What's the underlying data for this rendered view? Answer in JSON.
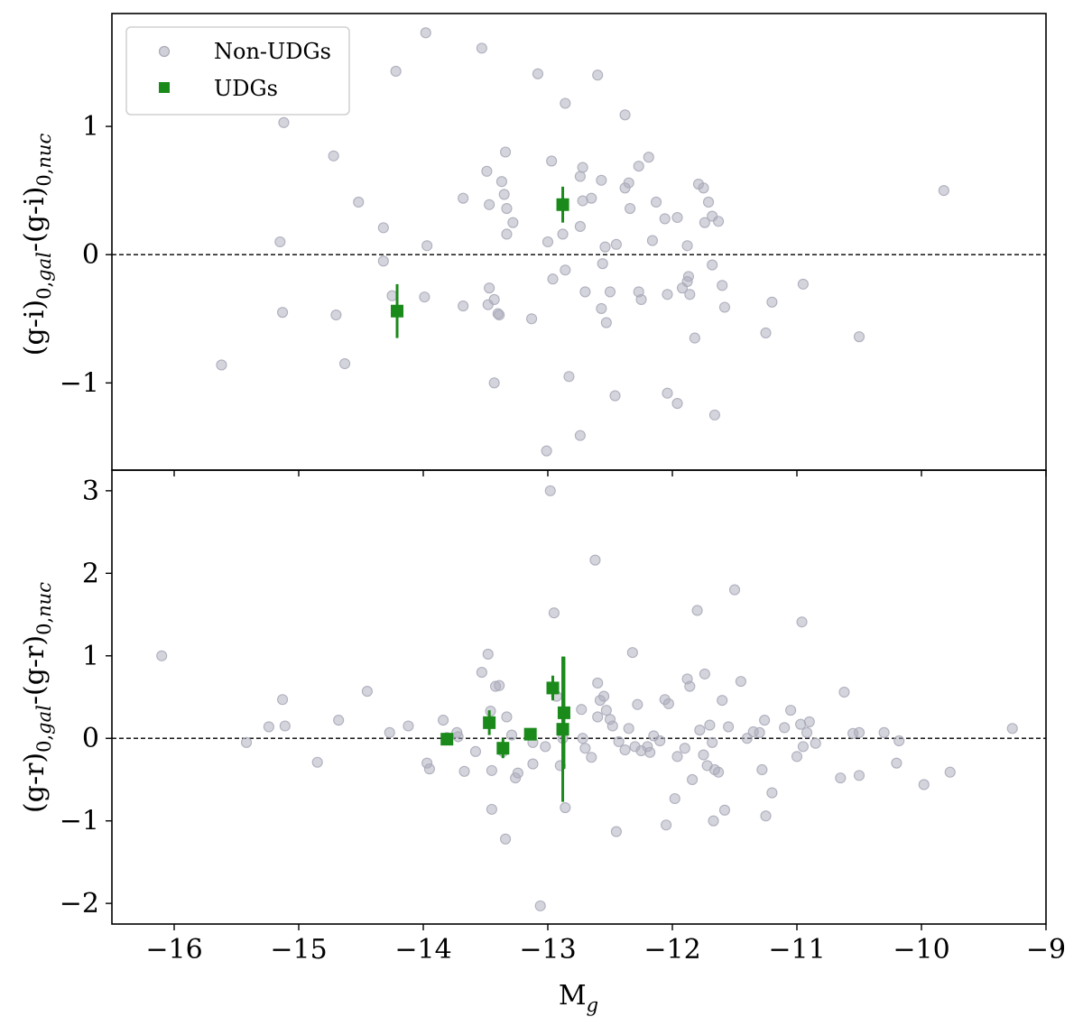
{
  "colors": {
    "non_udg_marker": "#a9aab9",
    "udg_marker": "#1a8a1a",
    "axis": "#000000",
    "zero_line": "#000000"
  },
  "legend": {
    "location": "upper-left",
    "entries": [
      {
        "label": "Non-UDGs",
        "marker": "circle",
        "color": "#a9aab9"
      },
      {
        "label": "UDGs",
        "marker": "square",
        "color": "#1a8a1a"
      }
    ]
  },
  "chart_data": [
    {
      "type": "scatter",
      "panel": "top",
      "xlabel": "M_g",
      "ylabel": "(g-i)0,gal-(g-i)0,nuc",
      "xlim": [
        -16.5,
        -9
      ],
      "ylim": [
        -1.68,
        1.88
      ],
      "xticks": [
        -16,
        -15,
        -14,
        -13,
        -12,
        -11,
        -10,
        -9
      ],
      "yticks": [
        -1,
        0,
        1
      ],
      "ytick_labels": [
        "−1",
        "0",
        "1"
      ],
      "zero_line": {
        "y": 0,
        "style": "dashed"
      },
      "show_x_tick_labels": false,
      "series": [
        {
          "name": "Non-UDGs",
          "marker": "circle",
          "points": [
            [
              -15.62,
              -0.86
            ],
            [
              -15.12,
              1.03
            ],
            [
              -15.15,
              0.1
            ],
            [
              -15.13,
              -0.45
            ],
            [
              -14.72,
              0.77
            ],
            [
              -14.7,
              -0.47
            ],
            [
              -14.63,
              -0.85
            ],
            [
              -14.52,
              0.41
            ],
            [
              -14.32,
              0.21
            ],
            [
              -14.32,
              -0.05
            ],
            [
              -14.22,
              1.43
            ],
            [
              -14.25,
              -0.32
            ],
            [
              -13.98,
              1.73
            ],
            [
              -13.97,
              0.07
            ],
            [
              -13.99,
              -0.33
            ],
            [
              -13.68,
              0.44
            ],
            [
              -13.68,
              -0.4
            ],
            [
              -13.53,
              1.61
            ],
            [
              -13.49,
              0.65
            ],
            [
              -13.48,
              -0.39
            ],
            [
              -13.47,
              0.39
            ],
            [
              -13.47,
              -0.26
            ],
            [
              -13.43,
              -0.35
            ],
            [
              -13.4,
              -0.46
            ],
            [
              -13.43,
              -1.0
            ],
            [
              -13.39,
              -0.47
            ],
            [
              -13.37,
              0.57
            ],
            [
              -13.35,
              0.47
            ],
            [
              -13.34,
              0.8
            ],
            [
              -13.33,
              0.36
            ],
            [
              -13.33,
              0.16
            ],
            [
              -13.28,
              0.25
            ],
            [
              -13.13,
              -0.5
            ],
            [
              -13.08,
              1.41
            ],
            [
              -13.0,
              0.1
            ],
            [
              -12.97,
              0.73
            ],
            [
              -12.96,
              -0.19
            ],
            [
              -13.01,
              -1.53
            ],
            [
              -12.88,
              0.16
            ],
            [
              -12.86,
              1.18
            ],
            [
              -12.86,
              -0.12
            ],
            [
              -12.83,
              -0.95
            ],
            [
              -12.74,
              0.61
            ],
            [
              -12.72,
              0.68
            ],
            [
              -12.72,
              0.42
            ],
            [
              -12.74,
              0.22
            ],
            [
              -12.7,
              -0.29
            ],
            [
              -12.74,
              -1.41
            ],
            [
              -12.65,
              0.44
            ],
            [
              -12.6,
              1.4
            ],
            [
              -12.57,
              0.58
            ],
            [
              -12.56,
              -0.07
            ],
            [
              -12.57,
              -0.42
            ],
            [
              -12.53,
              -0.53
            ],
            [
              -12.54,
              0.06
            ],
            [
              -12.5,
              -0.29
            ],
            [
              -12.45,
              0.08
            ],
            [
              -12.46,
              -1.1
            ],
            [
              -12.38,
              1.09
            ],
            [
              -12.38,
              0.52
            ],
            [
              -12.35,
              0.56
            ],
            [
              -12.34,
              0.36
            ],
            [
              -12.27,
              0.69
            ],
            [
              -12.27,
              -0.29
            ],
            [
              -12.25,
              -0.35
            ],
            [
              -12.19,
              0.76
            ],
            [
              -12.16,
              0.11
            ],
            [
              -12.13,
              0.41
            ],
            [
              -12.06,
              0.28
            ],
            [
              -12.04,
              -0.31
            ],
            [
              -12.04,
              -1.08
            ],
            [
              -11.96,
              -1.16
            ],
            [
              -11.96,
              0.29
            ],
            [
              -11.92,
              -0.26
            ],
            [
              -11.88,
              0.07
            ],
            [
              -11.88,
              -0.21
            ],
            [
              -11.87,
              -0.17
            ],
            [
              -11.86,
              -0.31
            ],
            [
              -11.82,
              -0.65
            ],
            [
              -11.79,
              0.55
            ],
            [
              -11.75,
              0.52
            ],
            [
              -11.74,
              0.25
            ],
            [
              -11.71,
              0.41
            ],
            [
              -11.68,
              0.3
            ],
            [
              -11.68,
              -0.08
            ],
            [
              -11.63,
              0.26
            ],
            [
              -11.6,
              -0.24
            ],
            [
              -11.58,
              -0.41
            ],
            [
              -11.66,
              -1.25
            ],
            [
              -11.25,
              -0.61
            ],
            [
              -11.2,
              -0.37
            ],
            [
              -10.95,
              -0.23
            ],
            [
              -10.5,
              -0.64
            ],
            [
              -9.82,
              0.5
            ]
          ]
        },
        {
          "name": "UDGs",
          "marker": "square",
          "points": [
            {
              "x": -14.21,
              "y": -0.44,
              "yerr": 0.21
            },
            {
              "x": -12.88,
              "y": 0.39,
              "yerr": 0.14
            }
          ]
        }
      ]
    },
    {
      "type": "scatter",
      "panel": "bottom",
      "xlabel": "M_g",
      "ylabel": "(g-r)0,gal-(g-r)0,nuc",
      "xlim": [
        -16.5,
        -9
      ],
      "ylim": [
        -2.25,
        3.25
      ],
      "xticks": [
        -16,
        -15,
        -14,
        -13,
        -12,
        -11,
        -10,
        -9
      ],
      "xtick_labels": [
        "−16",
        "−15",
        "−14",
        "−13",
        "−12",
        "−11",
        "−10",
        "−9"
      ],
      "yticks": [
        -2,
        -1,
        0,
        1,
        2,
        3
      ],
      "ytick_labels": [
        "−2",
        "−1",
        "0",
        "1",
        "2",
        "3"
      ],
      "zero_line": {
        "y": 0,
        "style": "dashed"
      },
      "series": [
        {
          "name": "Non-UDGs",
          "marker": "circle",
          "points": [
            [
              -16.1,
              1.0
            ],
            [
              -15.42,
              -0.05
            ],
            [
              -15.24,
              0.14
            ],
            [
              -15.13,
              0.47
            ],
            [
              -15.11,
              0.15
            ],
            [
              -14.85,
              -0.29
            ],
            [
              -14.68,
              0.22
            ],
            [
              -14.45,
              0.57
            ],
            [
              -14.27,
              0.07
            ],
            [
              -14.12,
              0.15
            ],
            [
              -13.97,
              -0.3
            ],
            [
              -13.95,
              -0.37
            ],
            [
              -13.84,
              0.22
            ],
            [
              -13.81,
              0.01
            ],
            [
              -13.73,
              0.07
            ],
            [
              -13.72,
              0.02
            ],
            [
              -13.67,
              -0.4
            ],
            [
              -13.58,
              -0.16
            ],
            [
              -13.53,
              0.8
            ],
            [
              -13.48,
              1.02
            ],
            [
              -13.46,
              0.33
            ],
            [
              -13.45,
              -0.39
            ],
            [
              -13.45,
              -0.86
            ],
            [
              -13.42,
              0.63
            ],
            [
              -13.39,
              0.64
            ],
            [
              -13.36,
              -0.16
            ],
            [
              -13.34,
              -1.22
            ],
            [
              -13.33,
              0.26
            ],
            [
              -13.29,
              0.04
            ],
            [
              -13.26,
              -0.48
            ],
            [
              -13.24,
              -0.42
            ],
            [
              -13.12,
              -0.05
            ],
            [
              -13.12,
              -0.31
            ],
            [
              -13.06,
              -2.03
            ],
            [
              -13.02,
              -0.1
            ],
            [
              -12.98,
              3.0
            ],
            [
              -12.95,
              1.52
            ],
            [
              -12.93,
              0.51
            ],
            [
              -12.9,
              -0.33
            ],
            [
              -12.88,
              0.0
            ],
            [
              -12.86,
              -0.84
            ],
            [
              -12.73,
              0.35
            ],
            [
              -12.72,
              0.0
            ],
            [
              -12.7,
              -0.12
            ],
            [
              -12.65,
              -0.23
            ],
            [
              -12.6,
              0.26
            ],
            [
              -12.62,
              2.16
            ],
            [
              -12.6,
              0.67
            ],
            [
              -12.58,
              0.46
            ],
            [
              -12.55,
              0.51
            ],
            [
              -12.53,
              0.34
            ],
            [
              -12.5,
              0.23
            ],
            [
              -12.48,
              0.15
            ],
            [
              -12.45,
              -1.13
            ],
            [
              -12.43,
              -0.04
            ],
            [
              -12.38,
              -0.14
            ],
            [
              -12.35,
              0.12
            ],
            [
              -12.32,
              1.04
            ],
            [
              -12.3,
              -0.1
            ],
            [
              -12.28,
              0.41
            ],
            [
              -12.25,
              -0.15
            ],
            [
              -12.2,
              -0.1
            ],
            [
              -12.18,
              -0.17
            ],
            [
              -12.15,
              0.03
            ],
            [
              -12.1,
              -0.03
            ],
            [
              -12.06,
              0.47
            ],
            [
              -12.05,
              -1.05
            ],
            [
              -12.03,
              0.42
            ],
            [
              -11.98,
              -0.73
            ],
            [
              -11.96,
              -0.22
            ],
            [
              -11.9,
              -0.12
            ],
            [
              -11.88,
              0.72
            ],
            [
              -11.86,
              0.63
            ],
            [
              -11.84,
              -0.5
            ],
            [
              -11.8,
              1.55
            ],
            [
              -11.78,
              0.1
            ],
            [
              -11.75,
              -0.2
            ],
            [
              -11.74,
              0.78
            ],
            [
              -11.72,
              -0.33
            ],
            [
              -11.7,
              0.16
            ],
            [
              -11.68,
              -0.05
            ],
            [
              -11.67,
              -1.0
            ],
            [
              -11.66,
              -0.38
            ],
            [
              -11.63,
              -0.41
            ],
            [
              -11.6,
              0.46
            ],
            [
              -11.58,
              -0.87
            ],
            [
              -11.55,
              0.14
            ],
            [
              -11.5,
              1.8
            ],
            [
              -11.45,
              0.69
            ],
            [
              -11.4,
              0.0
            ],
            [
              -11.35,
              0.08
            ],
            [
              -11.3,
              0.07
            ],
            [
              -11.28,
              -0.38
            ],
            [
              -11.26,
              0.22
            ],
            [
              -11.25,
              -0.94
            ],
            [
              -11.2,
              -0.66
            ],
            [
              -11.1,
              0.13
            ],
            [
              -11.05,
              0.34
            ],
            [
              -11.0,
              -0.22
            ],
            [
              -10.97,
              0.17
            ],
            [
              -10.96,
              1.41
            ],
            [
              -10.95,
              -0.1
            ],
            [
              -10.92,
              0.07
            ],
            [
              -10.9,
              0.2
            ],
            [
              -10.85,
              -0.06
            ],
            [
              -10.65,
              -0.48
            ],
            [
              -10.62,
              0.56
            ],
            [
              -10.55,
              0.06
            ],
            [
              -10.5,
              0.07
            ],
            [
              -10.5,
              -0.45
            ],
            [
              -10.3,
              0.07
            ],
            [
              -10.2,
              -0.3
            ],
            [
              -10.18,
              -0.03
            ],
            [
              -9.98,
              -0.56
            ],
            [
              -9.77,
              -0.41
            ],
            [
              -9.27,
              0.12
            ]
          ]
        },
        {
          "name": "UDGs",
          "marker": "square",
          "points": [
            {
              "x": -13.81,
              "y": -0.01,
              "yerr": 0.07
            },
            {
              "x": -13.47,
              "y": 0.19,
              "yerr": 0.15
            },
            {
              "x": -13.36,
              "y": -0.12,
              "yerr": 0.12
            },
            {
              "x": -13.14,
              "y": 0.05,
              "yerr": 0.05
            },
            {
              "x": -12.96,
              "y": 0.61,
              "yerr": 0.15
            },
            {
              "x": -12.87,
              "y": 0.31,
              "yerr": 0.68
            },
            {
              "x": -12.88,
              "y": 0.11,
              "yerr": 0.88
            }
          ]
        }
      ]
    }
  ]
}
